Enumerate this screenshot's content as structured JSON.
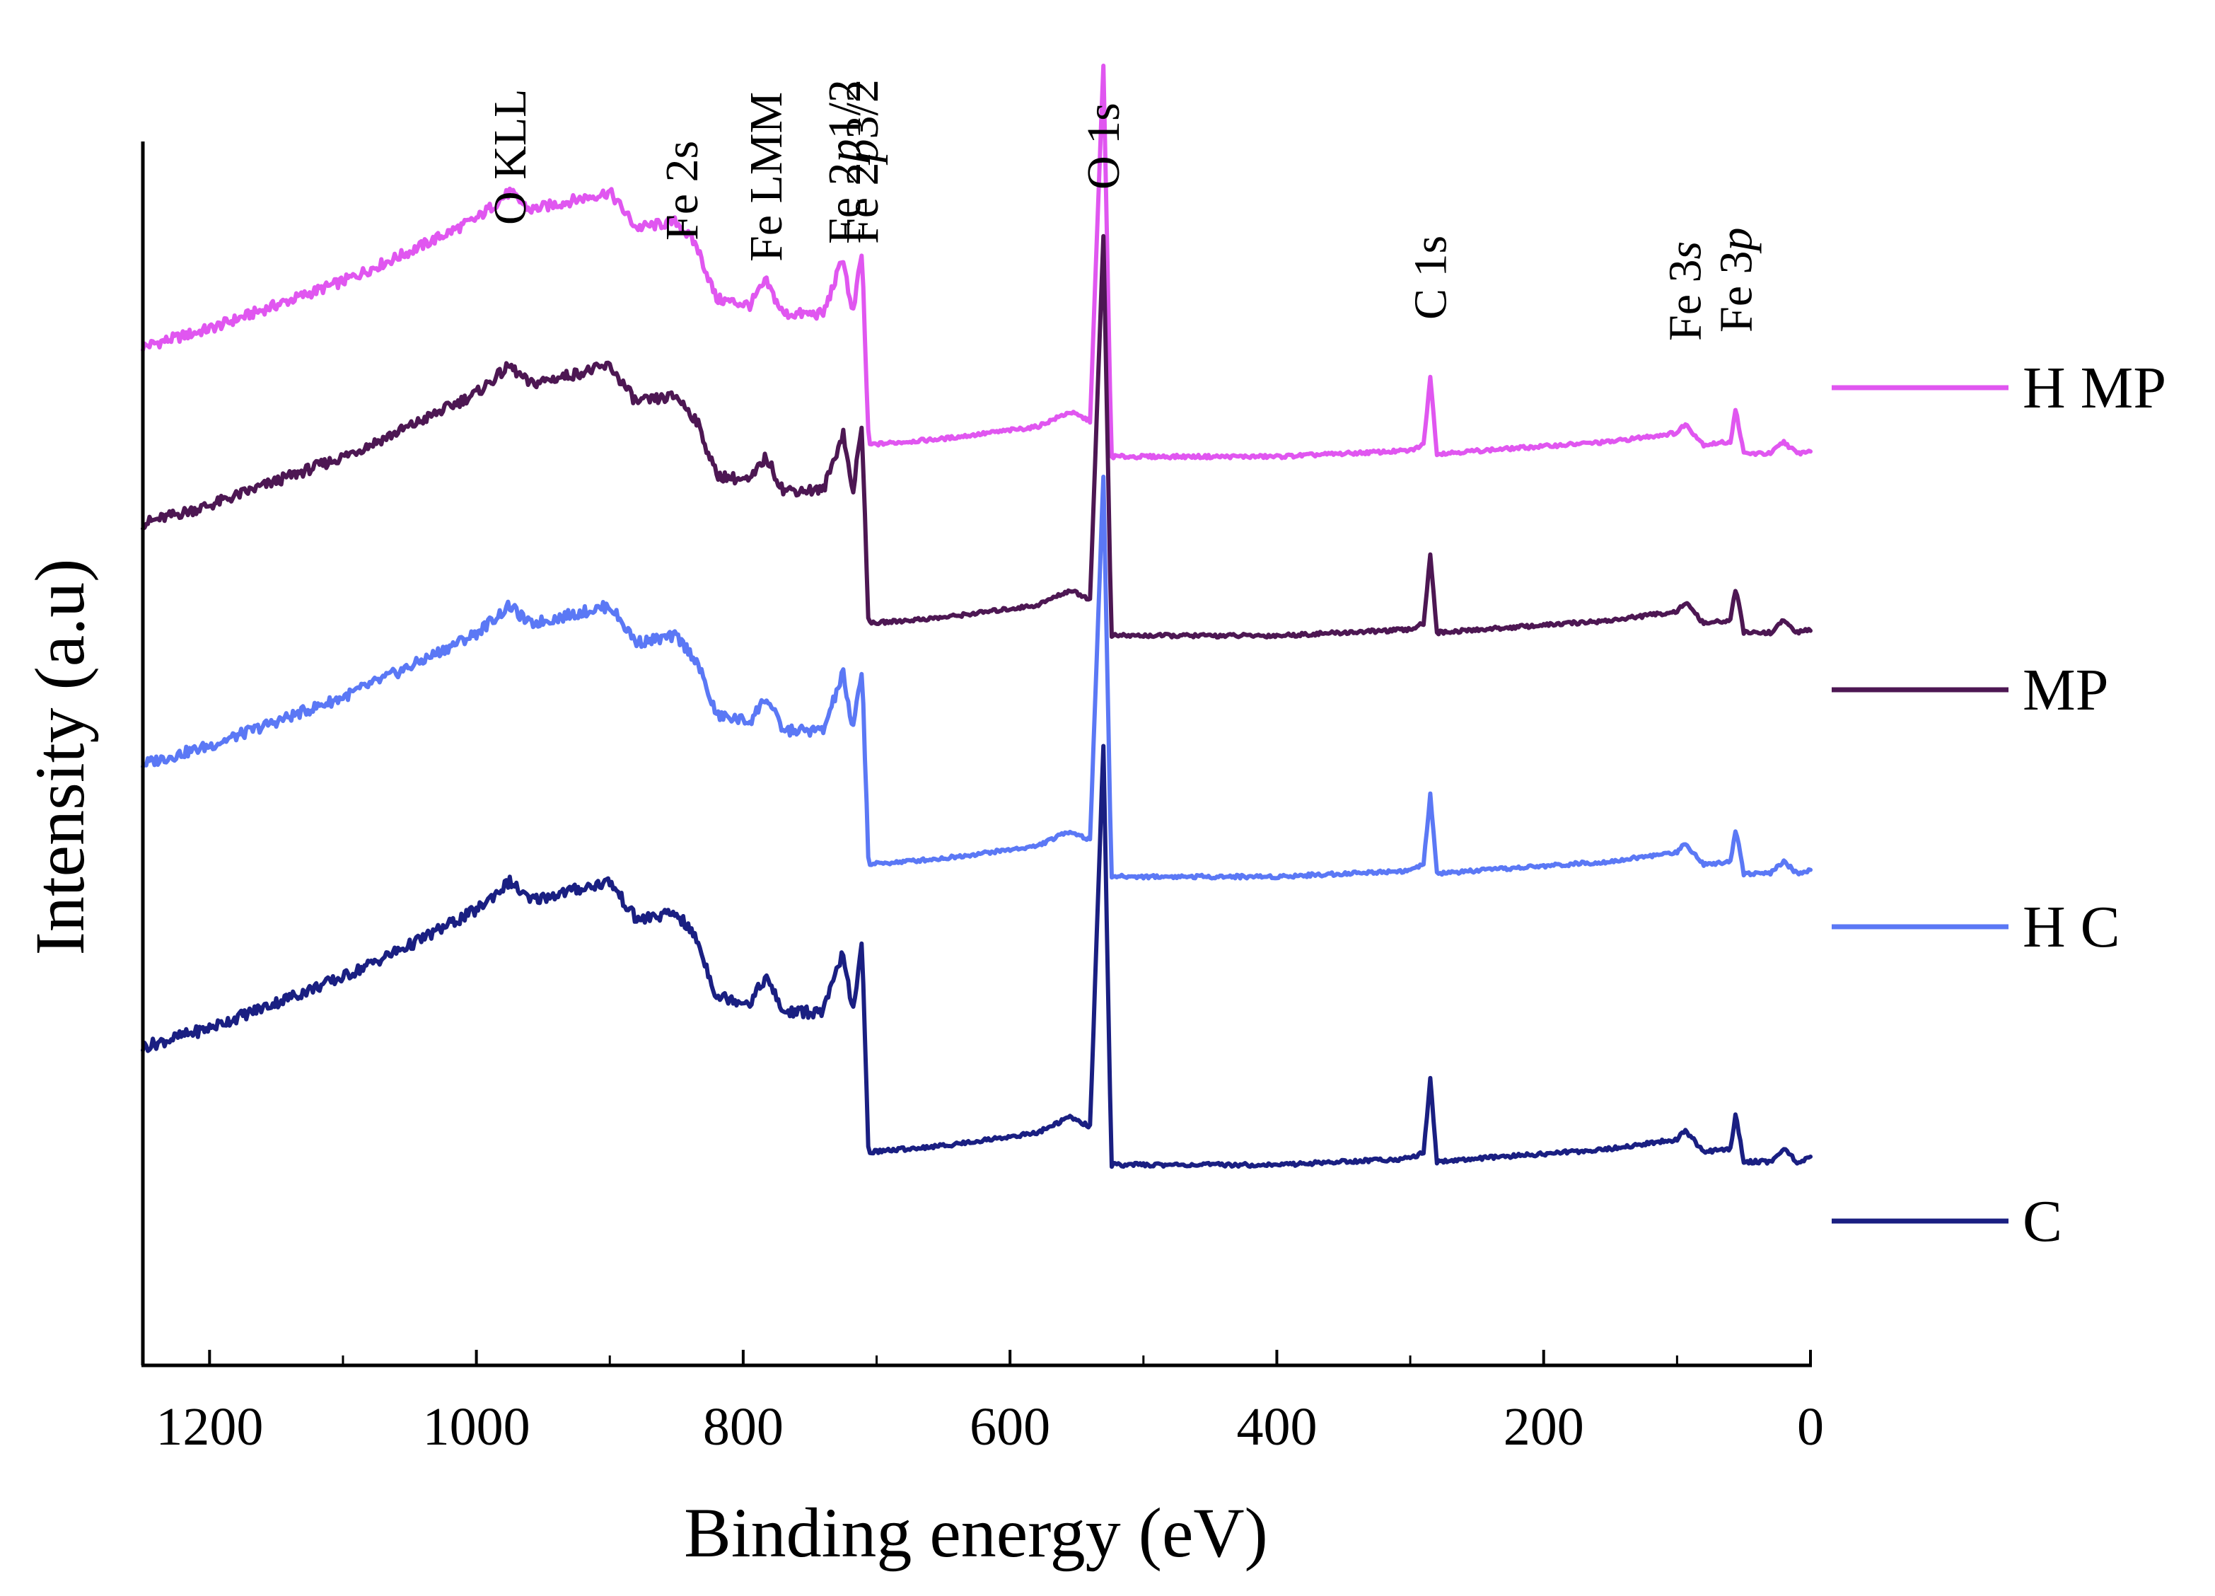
{
  "chart_data": {
    "type": "line",
    "title": "",
    "xlabel": "Binding energy (eV)",
    "ylabel": "Intensity (a.u)",
    "xlim": [
      1250,
      0
    ],
    "x_reversed": true,
    "xticks": [
      1200,
      1000,
      800,
      600,
      400,
      200,
      0
    ],
    "yticks_shown": false,
    "peak_labels": [
      {
        "text": "O KLL",
        "x": 975,
        "italic_part": ""
      },
      {
        "text": "Fe 2s",
        "x": 846,
        "italic_part": ""
      },
      {
        "text": "Fe LMM",
        "x": 783,
        "italic_part": ""
      },
      {
        "text": "Fe 2p1/2",
        "x": 724,
        "italic_part": "p"
      },
      {
        "text": "Fe 2p3/2",
        "x": 711,
        "italic_part": "p"
      },
      {
        "text": "O 1s",
        "x": 530,
        "italic_part": ""
      },
      {
        "text": "C 1s",
        "x": 285,
        "italic_part": ""
      },
      {
        "text": "Fe 3s",
        "x": 94,
        "italic_part": "s"
      },
      {
        "text": "Fe 3p",
        "x": 56,
        "italic_part": "p"
      }
    ],
    "baseline_shape": [
      [
        1250,
        0.0
      ],
      [
        1200,
        0.06
      ],
      [
        1100,
        0.22
      ],
      [
        1050,
        0.32
      ],
      [
        1000,
        0.43
      ],
      [
        975,
        0.52
      ],
      [
        960,
        0.46
      ],
      [
        900,
        0.52
      ],
      [
        880,
        0.4
      ],
      [
        850,
        0.42
      ],
      [
        835,
        0.34
      ],
      [
        820,
        0.16
      ],
      [
        795,
        0.14
      ],
      [
        783,
        0.22
      ],
      [
        770,
        0.11
      ],
      [
        740,
        0.11
      ],
      [
        725,
        0.3
      ],
      [
        718,
        0.1
      ],
      [
        711,
        0.32
      ],
      [
        706,
        -0.33
      ],
      [
        650,
        -0.31
      ],
      [
        580,
        -0.27
      ],
      [
        555,
        -0.22
      ],
      [
        540,
        -0.25
      ],
      [
        530,
        0.95
      ],
      [
        524,
        -0.37
      ],
      [
        400,
        -0.37
      ],
      [
        300,
        -0.35
      ],
      [
        290,
        -0.33
      ],
      [
        285,
        -0.1
      ],
      [
        280,
        -0.36
      ],
      [
        150,
        -0.32
      ],
      [
        100,
        -0.29
      ],
      [
        94,
        -0.26
      ],
      [
        80,
        -0.33
      ],
      [
        60,
        -0.32
      ],
      [
        56,
        -0.21
      ],
      [
        50,
        -0.36
      ],
      [
        30,
        -0.36
      ],
      [
        20,
        -0.32
      ],
      [
        10,
        -0.36
      ],
      [
        0,
        -0.35
      ]
    ],
    "series": [
      {
        "name": "H MP",
        "color": "#e056f0",
        "offset": 0,
        "amplitude": 1.0
      },
      {
        "name": "MP",
        "color": "#4d1753",
        "offset": 1,
        "amplitude": 1.02
      },
      {
        "name": "H C",
        "color": "#5b78f5",
        "offset": 2,
        "amplitude": 1.0
      },
      {
        "name": "C",
        "color": "#1a1f82",
        "offset": 3,
        "amplitude": 1.0
      }
    ],
    "legend": "right"
  }
}
